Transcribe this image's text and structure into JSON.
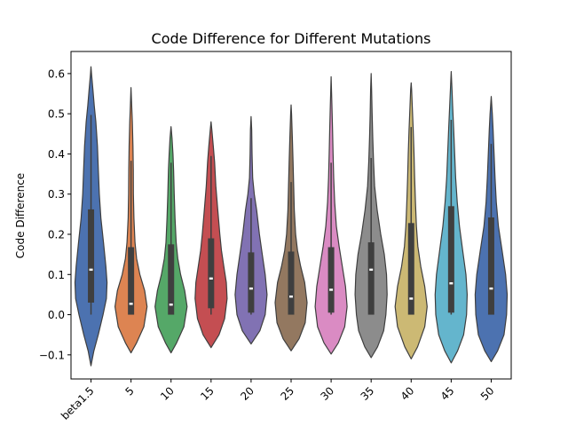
{
  "chart_data": {
    "type": "violin",
    "title": "Code Difference for Different Mutations",
    "xlabel": "",
    "ylabel": "Code Difference",
    "ylim": [
      -0.16,
      0.655
    ],
    "yticks": [
      -0.1,
      0.0,
      0.1,
      0.2,
      0.3,
      0.4,
      0.5,
      0.6
    ],
    "ytick_labels": [
      "−0.1",
      "0.0",
      "0.1",
      "0.2",
      "0.3",
      "0.4",
      "0.5",
      "0.6"
    ],
    "grid": false,
    "legend": "none",
    "categories": [
      "beta1.5",
      "5",
      "10",
      "15",
      "20",
      "25",
      "30",
      "35",
      "40",
      "45",
      "50"
    ],
    "colors": [
      "#4c72b0",
      "#dd8452",
      "#55a868",
      "#c44e52",
      "#8172b3",
      "#937860",
      "#da8bc3",
      "#8c8c8c",
      "#ccb974",
      "#64b5cd",
      "#4c72b0"
    ],
    "violins": [
      {
        "name": "beta1.5",
        "min": -0.127,
        "max": 0.617,
        "q1": 0.03,
        "median": 0.112,
        "q3": 0.262,
        "whisker_low": 0.0,
        "whisker_high": 0.497,
        "density": [
          [
            -0.127,
            0.0
          ],
          [
            -0.09,
            0.18
          ],
          [
            -0.05,
            0.45
          ],
          [
            0.0,
            0.75
          ],
          [
            0.04,
            0.96
          ],
          [
            0.08,
            1.0
          ],
          [
            0.12,
            0.93
          ],
          [
            0.18,
            0.78
          ],
          [
            0.24,
            0.62
          ],
          [
            0.3,
            0.52
          ],
          [
            0.36,
            0.46
          ],
          [
            0.42,
            0.4
          ],
          [
            0.48,
            0.3
          ],
          [
            0.52,
            0.2
          ],
          [
            0.56,
            0.12
          ],
          [
            0.6,
            0.03
          ],
          [
            0.617,
            0.0
          ]
        ]
      },
      {
        "name": "5",
        "min": -0.095,
        "max": 0.565,
        "q1": 0.0,
        "median": 0.027,
        "q3": 0.168,
        "whisker_low": 0.0,
        "whisker_high": 0.383,
        "density": [
          [
            -0.095,
            0.0
          ],
          [
            -0.07,
            0.35
          ],
          [
            -0.03,
            0.8
          ],
          [
            0.02,
            1.0
          ],
          [
            0.06,
            0.85
          ],
          [
            0.1,
            0.55
          ],
          [
            0.14,
            0.35
          ],
          [
            0.18,
            0.25
          ],
          [
            0.24,
            0.18
          ],
          [
            0.3,
            0.15
          ],
          [
            0.36,
            0.14
          ],
          [
            0.42,
            0.12
          ],
          [
            0.48,
            0.08
          ],
          [
            0.52,
            0.04
          ],
          [
            0.565,
            0.0
          ]
        ]
      },
      {
        "name": "10",
        "min": -0.095,
        "max": 0.468,
        "q1": 0.0,
        "median": 0.025,
        "q3": 0.175,
        "whisker_low": 0.0,
        "whisker_high": 0.378,
        "density": [
          [
            -0.095,
            0.0
          ],
          [
            -0.07,
            0.35
          ],
          [
            -0.03,
            0.8
          ],
          [
            0.02,
            1.0
          ],
          [
            0.06,
            0.85
          ],
          [
            0.1,
            0.6
          ],
          [
            0.14,
            0.42
          ],
          [
            0.18,
            0.32
          ],
          [
            0.24,
            0.25
          ],
          [
            0.3,
            0.2
          ],
          [
            0.36,
            0.16
          ],
          [
            0.4,
            0.12
          ],
          [
            0.44,
            0.06
          ],
          [
            0.468,
            0.0
          ]
        ]
      },
      {
        "name": "15",
        "min": -0.082,
        "max": 0.48,
        "q1": 0.016,
        "median": 0.09,
        "q3": 0.19,
        "whisker_low": 0.0,
        "whisker_high": 0.395,
        "density": [
          [
            -0.082,
            0.0
          ],
          [
            -0.05,
            0.5
          ],
          [
            -0.01,
            0.85
          ],
          [
            0.04,
            1.0
          ],
          [
            0.08,
            0.95
          ],
          [
            0.12,
            0.8
          ],
          [
            0.16,
            0.65
          ],
          [
            0.2,
            0.55
          ],
          [
            0.26,
            0.42
          ],
          [
            0.32,
            0.3
          ],
          [
            0.38,
            0.22
          ],
          [
            0.42,
            0.14
          ],
          [
            0.46,
            0.05
          ],
          [
            0.48,
            0.0
          ]
        ]
      },
      {
        "name": "20",
        "min": -0.073,
        "max": 0.493,
        "q1": 0.005,
        "median": 0.065,
        "q3": 0.155,
        "whisker_low": 0.0,
        "whisker_high": 0.29,
        "density": [
          [
            -0.073,
            0.0
          ],
          [
            -0.04,
            0.55
          ],
          [
            0.0,
            0.88
          ],
          [
            0.05,
            1.0
          ],
          [
            0.1,
            0.88
          ],
          [
            0.15,
            0.7
          ],
          [
            0.2,
            0.52
          ],
          [
            0.26,
            0.35
          ],
          [
            0.3,
            0.2
          ],
          [
            0.34,
            0.1
          ],
          [
            0.4,
            0.06
          ],
          [
            0.46,
            0.04
          ],
          [
            0.493,
            0.0
          ]
        ]
      },
      {
        "name": "25",
        "min": -0.09,
        "max": 0.522,
        "q1": 0.0,
        "median": 0.045,
        "q3": 0.157,
        "whisker_low": 0.0,
        "whisker_high": 0.33,
        "density": [
          [
            -0.09,
            0.0
          ],
          [
            -0.06,
            0.5
          ],
          [
            -0.02,
            0.88
          ],
          [
            0.03,
            1.0
          ],
          [
            0.08,
            0.85
          ],
          [
            0.12,
            0.6
          ],
          [
            0.16,
            0.4
          ],
          [
            0.2,
            0.28
          ],
          [
            0.26,
            0.2
          ],
          [
            0.32,
            0.16
          ],
          [
            0.38,
            0.12
          ],
          [
            0.44,
            0.08
          ],
          [
            0.5,
            0.03
          ],
          [
            0.522,
            0.0
          ]
        ]
      },
      {
        "name": "30",
        "min": -0.098,
        "max": 0.592,
        "q1": 0.005,
        "median": 0.062,
        "q3": 0.168,
        "whisker_low": 0.0,
        "whisker_high": 0.378,
        "density": [
          [
            -0.098,
            0.0
          ],
          [
            -0.07,
            0.45
          ],
          [
            -0.03,
            0.85
          ],
          [
            0.02,
            1.0
          ],
          [
            0.07,
            0.9
          ],
          [
            0.12,
            0.7
          ],
          [
            0.17,
            0.5
          ],
          [
            0.22,
            0.33
          ],
          [
            0.28,
            0.22
          ],
          [
            0.34,
            0.16
          ],
          [
            0.4,
            0.12
          ],
          [
            0.46,
            0.09
          ],
          [
            0.52,
            0.05
          ],
          [
            0.56,
            0.02
          ],
          [
            0.592,
            0.0
          ]
        ]
      },
      {
        "name": "35",
        "min": -0.107,
        "max": 0.6,
        "q1": 0.0,
        "median": 0.112,
        "q3": 0.18,
        "whisker_low": 0.0,
        "whisker_high": 0.39,
        "density": [
          [
            -0.107,
            0.0
          ],
          [
            -0.08,
            0.4
          ],
          [
            -0.04,
            0.78
          ],
          [
            0.0,
            0.92
          ],
          [
            0.05,
            1.0
          ],
          [
            0.1,
            0.96
          ],
          [
            0.15,
            0.82
          ],
          [
            0.2,
            0.6
          ],
          [
            0.26,
            0.38
          ],
          [
            0.32,
            0.22
          ],
          [
            0.38,
            0.15
          ],
          [
            0.44,
            0.1
          ],
          [
            0.5,
            0.06
          ],
          [
            0.56,
            0.03
          ],
          [
            0.6,
            0.0
          ]
        ]
      },
      {
        "name": "40",
        "min": -0.11,
        "max": 0.577,
        "q1": 0.0,
        "median": 0.04,
        "q3": 0.228,
        "whisker_low": 0.0,
        "whisker_high": 0.467,
        "density": [
          [
            -0.11,
            0.0
          ],
          [
            -0.08,
            0.4
          ],
          [
            -0.03,
            0.85
          ],
          [
            0.02,
            1.0
          ],
          [
            0.07,
            0.85
          ],
          [
            0.12,
            0.6
          ],
          [
            0.17,
            0.42
          ],
          [
            0.22,
            0.33
          ],
          [
            0.28,
            0.27
          ],
          [
            0.34,
            0.22
          ],
          [
            0.4,
            0.18
          ],
          [
            0.46,
            0.13
          ],
          [
            0.52,
            0.07
          ],
          [
            0.56,
            0.03
          ],
          [
            0.577,
            0.0
          ]
        ]
      },
      {
        "name": "45",
        "min": -0.12,
        "max": 0.605,
        "q1": 0.005,
        "median": 0.078,
        "q3": 0.27,
        "whisker_low": 0.0,
        "whisker_high": 0.485,
        "density": [
          [
            -0.12,
            0.0
          ],
          [
            -0.09,
            0.4
          ],
          [
            -0.05,
            0.78
          ],
          [
            0.0,
            0.96
          ],
          [
            0.05,
            1.0
          ],
          [
            0.1,
            0.92
          ],
          [
            0.16,
            0.72
          ],
          [
            0.22,
            0.52
          ],
          [
            0.28,
            0.38
          ],
          [
            0.34,
            0.28
          ],
          [
            0.4,
            0.22
          ],
          [
            0.46,
            0.16
          ],
          [
            0.52,
            0.09
          ],
          [
            0.56,
            0.05
          ],
          [
            0.605,
            0.0
          ]
        ]
      },
      {
        "name": "50",
        "min": -0.117,
        "max": 0.543,
        "q1": 0.0,
        "median": 0.065,
        "q3": 0.242,
        "whisker_low": 0.0,
        "whisker_high": 0.425,
        "density": [
          [
            -0.117,
            0.0
          ],
          [
            -0.09,
            0.4
          ],
          [
            -0.05,
            0.8
          ],
          [
            0.0,
            0.96
          ],
          [
            0.05,
            1.0
          ],
          [
            0.1,
            0.9
          ],
          [
            0.16,
            0.68
          ],
          [
            0.22,
            0.45
          ],
          [
            0.28,
            0.32
          ],
          [
            0.34,
            0.24
          ],
          [
            0.4,
            0.18
          ],
          [
            0.46,
            0.12
          ],
          [
            0.5,
            0.07
          ],
          [
            0.543,
            0.0
          ]
        ]
      }
    ]
  }
}
